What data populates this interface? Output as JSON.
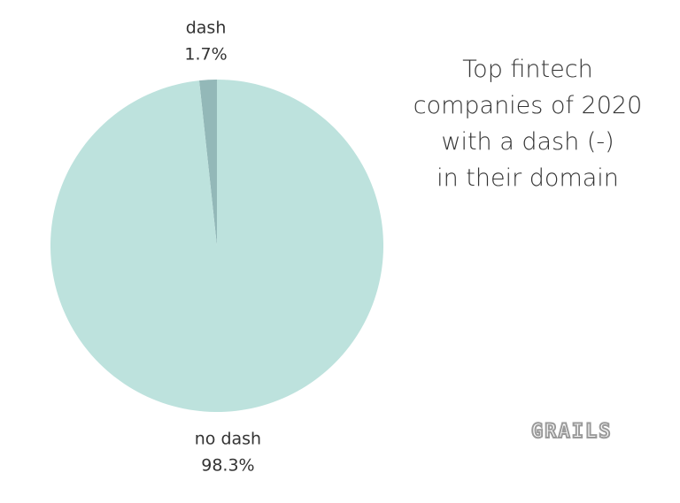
{
  "chart_data": {
    "type": "pie",
    "title": "Top fintech\ncompanies of 2020\nwith a dash (-)\nin their domain",
    "categories": [
      "dash",
      "no dash"
    ],
    "values": [
      1.7,
      98.3
    ],
    "value_labels": [
      "1.7%",
      "98.3%"
    ],
    "colors": [
      "#93b8b8",
      "#bde2dd"
    ],
    "watermark": "GRAILS"
  }
}
